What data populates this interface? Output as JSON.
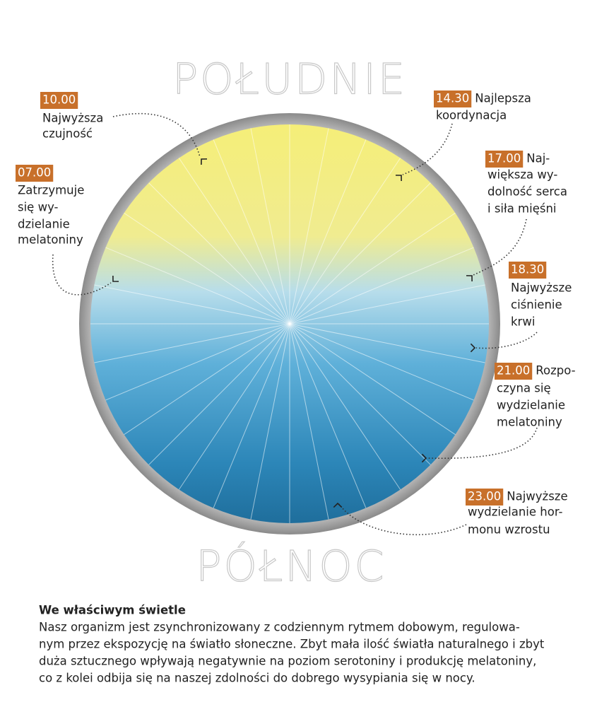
{
  "top_label": "POŁUDNIE",
  "bottom_label": "PÓŁNOC",
  "annotations": [
    {
      "time": "10.00",
      "lines": [
        "Najwyższa",
        "czujność"
      ]
    },
    {
      "time": "07.00",
      "lines": [
        "Zatrzymuje",
        "się wy-",
        "dzielanie",
        "melatoniny"
      ]
    },
    {
      "time": "14.30",
      "inline": "Najlepsza",
      "lines": [
        "koordynacja"
      ]
    },
    {
      "time": "17.00",
      "inline": "Naj-",
      "lines": [
        "większa wy-",
        "dolność serca",
        "i siła mięśni"
      ]
    },
    {
      "time": "18.30",
      "lines": [
        "Najwyższe",
        "ciśnienie",
        "krwi"
      ]
    },
    {
      "time": "21.00",
      "inline": "Rozpo-",
      "lines": [
        "czyna się",
        "wydzielanie",
        "melatoniny"
      ]
    },
    {
      "time": "23.00",
      "inline": "Najwyższe",
      "lines": [
        "wydzielanie hor-",
        "monu wzrostu"
      ]
    }
  ],
  "footer": {
    "title": "We właściwym świetle",
    "lines": [
      "Nasz organizm jest zsynchronizowany z codziennym rytmem dobowym, regulowa-",
      "nym przez ekspozycję na światło słoneczne. Zbyt mała ilość światła naturalnego i zbyt",
      "duża sztucznego wpływają negatywnie na poziom serotoniny i produkcję melatoniny,",
      "co z kolei odbija się na naszej zdolności do dobrego wysypiania się w nocy."
    ]
  }
}
